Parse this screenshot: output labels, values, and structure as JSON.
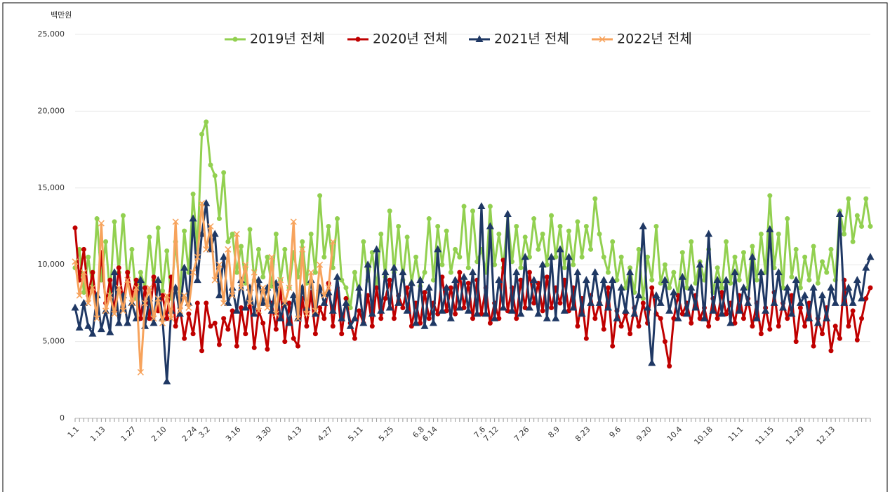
{
  "chart_data": {
    "type": "line",
    "y_label": "백만원",
    "legend": "top",
    "grid": true,
    "ylim": [
      0,
      25000
    ],
    "yticks": [
      0,
      {
        "value": 5000,
        "label": "5,000"
      },
      {
        "value": 10000,
        "label": "10,000"
      },
      {
        "value": 15000,
        "label": "15,000"
      },
      {
        "value": 20000,
        "label": "20,000"
      },
      {
        "value": 25000,
        "label": "25,000"
      }
    ],
    "categories": [
      "1.1",
      null,
      null,
      null,
      null,
      null,
      "1.13",
      null,
      null,
      null,
      null,
      null,
      null,
      "1.27",
      null,
      null,
      null,
      null,
      null,
      null,
      "2.10",
      null,
      null,
      null,
      null,
      null,
      null,
      "2.24",
      null,
      null,
      "3.2",
      null,
      null,
      null,
      null,
      null,
      null,
      "3.16",
      null,
      null,
      null,
      null,
      null,
      null,
      "3.30",
      null,
      null,
      null,
      null,
      null,
      null,
      "4.13",
      null,
      null,
      null,
      null,
      null,
      null,
      "4.27",
      null,
      null,
      null,
      null,
      null,
      null,
      "5.11",
      null,
      null,
      null,
      null,
      null,
      null,
      "5.25",
      null,
      null,
      null,
      null,
      null,
      null,
      "6.8",
      null,
      null,
      "6.14",
      null,
      null,
      null,
      null,
      null,
      null,
      null,
      null,
      null,
      null,
      "7.6",
      null,
      null,
      "7.12",
      null,
      null,
      null,
      null,
      null,
      null,
      "7.26",
      null,
      null,
      null,
      null,
      null,
      null,
      "8.9",
      null,
      null,
      null,
      null,
      null,
      null,
      "8.23",
      null,
      null,
      null,
      null,
      null,
      null,
      "9.6",
      null,
      null,
      null,
      null,
      null,
      null,
      "9.20",
      null,
      null,
      null,
      null,
      null,
      null,
      "10.4",
      null,
      null,
      null,
      null,
      null,
      null,
      "10.18",
      null,
      null,
      null,
      null,
      null,
      null,
      "11.1",
      null,
      null,
      null,
      null,
      null,
      null,
      "11.15",
      null,
      null,
      null,
      null,
      null,
      null,
      "11.29",
      null,
      null,
      null,
      null,
      null,
      null,
      "12.13",
      null,
      null,
      null,
      null,
      null,
      null,
      null,
      null,
      null
    ],
    "series": [
      {
        "name": "2019년 전체",
        "color": "#92d050",
        "marker": "circle",
        "values": [
          9800,
          11000,
          8200,
          10500,
          8500,
          13000,
          9000,
          11500,
          8000,
          12800,
          9500,
          13200,
          8800,
          11000,
          7800,
          9500,
          8500,
          11800,
          9000,
          12400,
          8300,
          10900,
          7800,
          11500,
          8200,
          12200,
          9500,
          14600,
          11000,
          18500,
          19300,
          16500,
          15800,
          13000,
          16000,
          11500,
          12000,
          9500,
          11200,
          8800,
          12300,
          9000,
          11000,
          9200,
          10500,
          8600,
          12000,
          9000,
          11000,
          8500,
          10800,
          9200,
          11500,
          8800,
          12000,
          9500,
          14500,
          10500,
          12500,
          9800,
          13000,
          9000,
          8500,
          7200,
          9500,
          8000,
          11500,
          9000,
          10800,
          8500,
          12000,
          9200,
          13500,
          9500,
          12500,
          9000,
          11800,
          8800,
          10500,
          8600,
          9500,
          13000,
          9000,
          12500,
          10000,
          12200,
          9500,
          11000,
          10500,
          13800,
          9800,
          13500,
          10200,
          11000,
          9500,
          13800,
          10000,
          12000,
          9800,
          13200,
          10200,
          12500,
          9800,
          11800,
          10500,
          13000,
          11000,
          12000,
          10000,
          13200,
          10500,
          12500,
          9800,
          12200,
          10000,
          12800,
          10500,
          12500,
          11000,
          14300,
          12000,
          10500,
          9500,
          11500,
          9000,
          10500,
          8500,
          9800,
          8200,
          11000,
          7800,
          10500,
          9000,
          12500,
          8800,
          10000,
          8500,
          9500,
          8000,
          10800,
          8500,
          11500,
          8800,
          10200,
          9000,
          11000,
          8200,
          9800,
          8500,
          11500,
          8800,
          10500,
          9000,
          10800,
          8500,
          11200,
          9000,
          12000,
          9500,
          14500,
          9800,
          12000,
          8500,
          13000,
          9200,
          11000,
          8500,
          10500,
          9000,
          11200,
          8800,
          10200,
          9500,
          11000,
          9000,
          13500,
          12000,
          14300,
          11500,
          13200,
          12500,
          14300,
          12500
        ]
      },
      {
        "name": "2020년 전체",
        "color": "#c00000",
        "marker": "circle",
        "values": [
          12400,
          9000,
          11000,
          8000,
          9500,
          7200,
          10800,
          7500,
          9000,
          7000,
          9800,
          7500,
          9500,
          8000,
          9000,
          6500,
          8500,
          6500,
          9200,
          7000,
          8000,
          6500,
          9200,
          6000,
          7200,
          5200,
          6800,
          5500,
          7500,
          4400,
          7500,
          6000,
          6200,
          4800,
          6500,
          5800,
          7000,
          4700,
          7200,
          5500,
          7800,
          4600,
          7000,
          6200,
          4500,
          7500,
          5800,
          8500,
          5000,
          7500,
          5200,
          4700,
          7800,
          6000,
          8200,
          5500,
          7200,
          6500,
          8800,
          6000,
          8500,
          5500,
          7800,
          6200,
          5200,
          7000,
          6200,
          8000,
          6000,
          8500,
          6500,
          7800,
          9000,
          6500,
          8000,
          7200,
          8500,
          6000,
          7500,
          6200,
          8200,
          6500,
          7500,
          6800,
          9200,
          7000,
          8500,
          6800,
          9500,
          7200,
          8800,
          6500,
          9000,
          6800,
          8500,
          6200,
          7500,
          6500,
          10300,
          7000,
          8500,
          6500,
          9000,
          7200,
          9500,
          7500,
          8800,
          7000,
          9200,
          7200,
          8500,
          7500,
          9000,
          7000,
          8500,
          6000,
          7800,
          5200,
          8000,
          6500,
          7500,
          5800,
          8500,
          4700,
          7000,
          6000,
          6800,
          5500,
          7200,
          6000,
          7500,
          6200,
          8500,
          6800,
          6500,
          5000,
          3400,
          6500,
          8000,
          6800,
          7500,
          6200,
          8000,
          6500,
          7200,
          6000,
          7800,
          6500,
          8200,
          6800,
          7500,
          6200,
          8000,
          6500,
          7800,
          6000,
          7500,
          5500,
          7200,
          5800,
          8200,
          6000,
          7500,
          6500,
          8000,
          5000,
          7200,
          6000,
          7500,
          4700,
          6500,
          5500,
          7200,
          4400,
          6000,
          5200,
          9000,
          6000,
          7000,
          5100,
          6500,
          7800,
          8500
        ]
      },
      {
        "name": "2021년 전체",
        "color": "#1f3864",
        "marker": "triangle",
        "values": [
          7200,
          5900,
          7500,
          6000,
          5500,
          8000,
          5800,
          7000,
          5600,
          9500,
          6200,
          8000,
          6200,
          7500,
          6500,
          9000,
          6000,
          7800,
          6200,
          9000,
          6500,
          2400,
          7000,
          8500,
          6800,
          9800,
          7500,
          13000,
          9000,
          12000,
          14000,
          11000,
          12000,
          8000,
          10500,
          7500,
          8500,
          7000,
          9000,
          7200,
          8500,
          6800,
          9000,
          7500,
          8500,
          7000,
          8800,
          6500,
          7500,
          6200,
          8000,
          6500,
          8500,
          7200,
          9000,
          6800,
          8500,
          7500,
          8200,
          7000,
          9200,
          6500,
          7500,
          6000,
          6500,
          8500,
          6200,
          10000,
          6800,
          11000,
          7000,
          9500,
          7200,
          9800,
          7500,
          9500,
          7000,
          8800,
          6200,
          9000,
          6000,
          8500,
          6200,
          11000,
          7000,
          8500,
          6500,
          9000,
          7200,
          9200,
          7000,
          9500,
          6800,
          13800,
          6800,
          12500,
          6500,
          9000,
          7200,
          13300,
          7000,
          9500,
          6800,
          10500,
          7200,
          9000,
          6800,
          10000,
          6500,
          10500,
          6500,
          11000,
          7000,
          10500,
          7200,
          9500,
          6800,
          9000,
          7500,
          9500,
          7500,
          9000,
          7200,
          9000,
          6500,
          8500,
          7000,
          9500,
          6800,
          8000,
          12500,
          7200,
          3600,
          8000,
          7500,
          9000,
          7000,
          8200,
          6500,
          9200,
          6800,
          8500,
          7200,
          10000,
          6500,
          12000,
          7000,
          9000,
          6800,
          9000,
          6200,
          9500,
          7000,
          8500,
          7500,
          10500,
          6500,
          9500,
          7000,
          12300,
          7500,
          9500,
          7200,
          8500,
          6800,
          9000,
          7500,
          8000,
          6500,
          8500,
          6200,
          8000,
          6500,
          8500,
          7500,
          13300,
          7500,
          8500,
          7500,
          9000,
          7800,
          9800,
          10500
        ]
      },
      {
        "name": "2022년 전체",
        "color": "#f7a35c",
        "marker": "cross",
        "values": [
          10200,
          8000,
          9500,
          7500,
          8500,
          6500,
          12700,
          7000,
          8000,
          6800,
          8500,
          7000,
          9000,
          7500,
          8500,
          3000,
          7500,
          8500,
          6500,
          7800,
          6200,
          8000,
          6500,
          12800,
          7000,
          8000,
          7200,
          9500,
          10500,
          14000,
          11000,
          12500,
          9000,
          10000,
          7500,
          11000,
          8000,
          12000,
          8500,
          10000,
          7500,
          9500,
          7000,
          8500,
          7200,
          10500,
          6800,
          9000,
          7500,
          8500,
          12800,
          6500,
          11000,
          6800,
          9500,
          7000,
          10000,
          8000,
          8500,
          11500,
          null,
          null,
          null,
          null,
          null,
          null,
          null,
          null,
          null,
          null,
          null,
          null,
          null,
          null,
          null,
          null,
          null,
          null,
          null,
          null,
          null,
          null,
          null,
          null,
          null,
          null,
          null,
          null,
          null,
          null,
          null,
          null,
          null,
          null,
          null,
          null,
          null,
          null,
          null,
          null,
          null,
          null,
          null,
          null,
          null,
          null,
          null,
          null,
          null,
          null,
          null,
          null,
          null,
          null,
          null,
          null,
          null,
          null,
          null,
          null,
          null,
          null,
          null,
          null,
          null,
          null,
          null,
          null,
          null,
          null,
          null,
          null,
          null,
          null,
          null,
          null,
          null,
          null,
          null,
          null,
          null,
          null,
          null,
          null,
          null,
          null,
          null,
          null,
          null,
          null,
          null,
          null,
          null,
          null,
          null,
          null,
          null,
          null,
          null,
          null,
          null,
          null,
          null,
          null,
          null,
          null,
          null,
          null,
          null,
          null,
          null,
          null,
          null,
          null,
          null,
          null,
          null,
          null,
          null,
          null,
          null,
          null,
          null
        ]
      }
    ]
  }
}
